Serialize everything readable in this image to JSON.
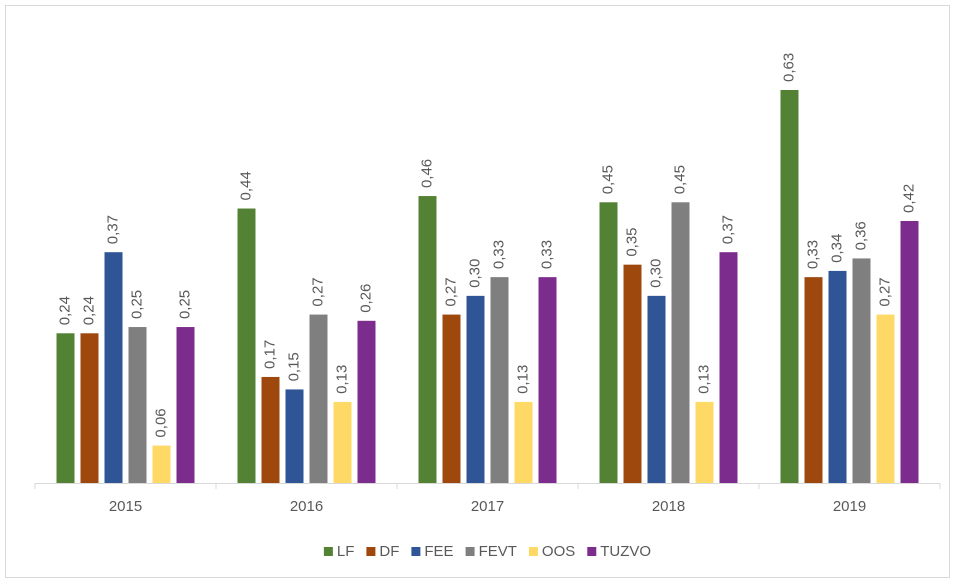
{
  "chart_data": {
    "type": "bar",
    "categories": [
      "2015",
      "2016",
      "2017",
      "2018",
      "2019"
    ],
    "series": [
      {
        "name": "LF",
        "color": "#548235",
        "values": [
          0.24,
          0.44,
          0.46,
          0.45,
          0.63
        ],
        "value_labels": [
          "0,24",
          "0,44",
          "0,46",
          "0,45",
          "0,63"
        ]
      },
      {
        "name": "DF",
        "color": "#9e480e",
        "values": [
          0.24,
          0.17,
          0.27,
          0.35,
          0.33
        ],
        "value_labels": [
          "0,24",
          "0,17",
          "0,27",
          "0,35",
          "0,33"
        ]
      },
      {
        "name": "FEE",
        "color": "#2f5597",
        "values": [
          0.37,
          0.15,
          0.3,
          0.3,
          0.34
        ],
        "value_labels": [
          "0,37",
          "0,15",
          "0,30",
          "0,30",
          "0,34"
        ]
      },
      {
        "name": "FEVT",
        "color": "#7f7f7f",
        "values": [
          0.25,
          0.27,
          0.33,
          0.45,
          0.36
        ],
        "value_labels": [
          "0,25",
          "0,27",
          "0,33",
          "0,45",
          "0,36"
        ]
      },
      {
        "name": "OOS",
        "color": "#ffd966",
        "values": [
          0.06,
          0.13,
          0.13,
          0.13,
          0.27
        ],
        "value_labels": [
          "0,06",
          "0,13",
          "0,13",
          "0,13",
          "0,27"
        ]
      },
      {
        "name": "TUZVO",
        "color": "#7b2c8c",
        "values": [
          0.25,
          0.26,
          0.33,
          0.37,
          0.42
        ],
        "value_labels": [
          "0,25",
          "0,26",
          "0,33",
          "0,37",
          "0,42"
        ]
      }
    ],
    "legend": "bottom"
  }
}
